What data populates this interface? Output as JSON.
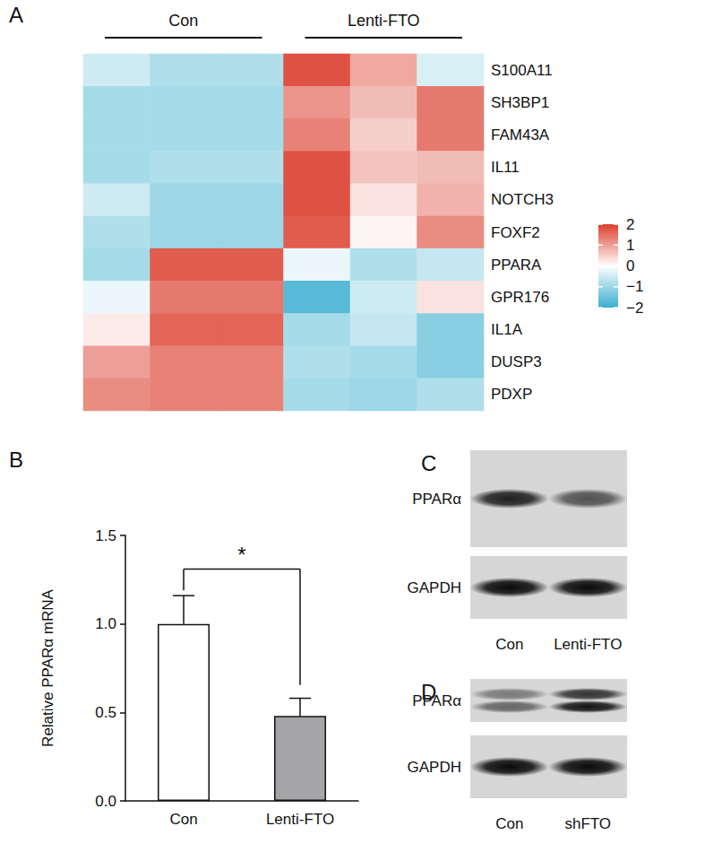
{
  "chart_data": [
    {
      "panel": "A",
      "type": "heatmap",
      "groups": [
        {
          "label": "Con",
          "columns": 3
        },
        {
          "label": "Lenti-FTO",
          "columns": 3
        }
      ],
      "x": [
        null,
        null,
        null,
        null,
        null,
        null
      ],
      "rows": [
        "S100A11",
        "SH3BP1",
        "FAM43A",
        "IL11",
        "NOTCH3",
        "FOXF2",
        "PPARA",
        "GPR176",
        "IL1A",
        "DUSP3",
        "PDXP"
      ],
      "values": [
        [
          -0.5,
          -0.8,
          -0.8,
          1.8,
          0.9,
          -0.4
        ],
        [
          -0.9,
          -0.9,
          -0.9,
          1.1,
          0.7,
          1.4
        ],
        [
          -0.9,
          -0.9,
          -0.9,
          1.3,
          0.5,
          1.4
        ],
        [
          -0.9,
          -0.8,
          -0.8,
          1.8,
          0.6,
          0.7
        ],
        [
          -0.5,
          -1.0,
          -1.0,
          1.8,
          0.3,
          0.8
        ],
        [
          -0.8,
          -1.0,
          -1.0,
          1.7,
          0.1,
          1.2
        ],
        [
          -0.9,
          1.7,
          1.7,
          -0.2,
          -0.8,
          -0.6
        ],
        [
          -0.2,
          1.4,
          1.4,
          -1.7,
          -0.5,
          0.3
        ],
        [
          0.2,
          1.6,
          1.6,
          -0.9,
          -0.6,
          -1.2
        ],
        [
          1.0,
          1.3,
          1.3,
          -0.8,
          -0.9,
          -1.2
        ],
        [
          1.2,
          1.3,
          1.3,
          -0.9,
          -1.0,
          -0.8
        ]
      ],
      "colors": [
        "#3aaecf",
        "#ffffff",
        "#db3f2e"
      ],
      "colorbar": {
        "range": [
          -2,
          2
        ],
        "ticks": [
          {
            "value": -2,
            "label": "−2"
          },
          {
            "value": -1,
            "label": "−1"
          },
          0,
          1,
          2
        ]
      }
    },
    {
      "panel": "B",
      "type": "bar",
      "categories": [
        "Con",
        "Lenti-FTO"
      ],
      "values": [
        1.0,
        0.48
      ],
      "errors": [
        0.16,
        0.1
      ],
      "colors": [
        "#ffffff",
        "#a5a5a8"
      ],
      "ylabel": "Relative PPARα mRNA",
      "ylim": [
        0,
        1.5
      ],
      "yticks": [
        {
          "value": 0,
          "label": "0.0"
        },
        {
          "value": 0.5,
          "label": "0.5"
        },
        {
          "value": 1,
          "label": "1.0"
        },
        {
          "value": 1.5,
          "label": "1.5"
        }
      ],
      "grid": false,
      "annotations": [
        {
          "text": "*",
          "from": "Con",
          "to": "Lenti-FTO"
        }
      ]
    },
    {
      "panel": "C",
      "type": "blot",
      "lanes": [
        "Con",
        "Lenti-FTO"
      ],
      "rows": [
        {
          "label": "PPARα",
          "band_intensity": [
            [
              0.9
            ],
            [
              0.65
            ]
          ]
        },
        {
          "label": "GAPDH",
          "band_intensity": [
            [
              1.0
            ],
            [
              1.0
            ]
          ]
        }
      ]
    },
    {
      "panel": "D",
      "type": "blot",
      "lanes": [
        "Con",
        "shFTO"
      ],
      "rows": [
        {
          "label": "PPARα",
          "band_intensity": [
            [
              0.45,
              0.55
            ],
            [
              0.8,
              0.95
            ]
          ]
        },
        {
          "label": "GAPDH",
          "band_intensity": [
            [
              1.0
            ],
            [
              1.0
            ]
          ]
        }
      ]
    }
  ]
}
